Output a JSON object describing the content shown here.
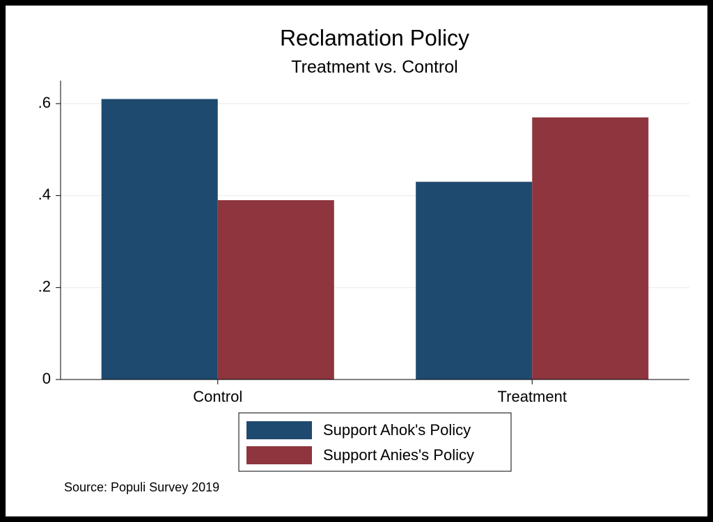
{
  "chart_data": {
    "type": "bar",
    "title": "Reclamation Policy",
    "subtitle": "Treatment vs. Control",
    "categories": [
      "Control",
      "Treatment"
    ],
    "series": [
      {
        "name": "Support Ahok's Policy",
        "color": "#1f4a6f",
        "values": [
          0.61,
          0.43
        ]
      },
      {
        "name": "Support Anies's Policy",
        "color": "#8e353e",
        "values": [
          0.39,
          0.57
        ]
      }
    ],
    "ylim": [
      0,
      0.65
    ],
    "yticks": [
      0,
      {
        "value": 0.2,
        "label": ".2"
      },
      {
        "value": 0.4,
        "label": ".4"
      },
      {
        "value": 0.6,
        "label": ".6"
      }
    ],
    "grid": true,
    "legend": "bottom",
    "note": "Source: Populi Survey 2019"
  }
}
